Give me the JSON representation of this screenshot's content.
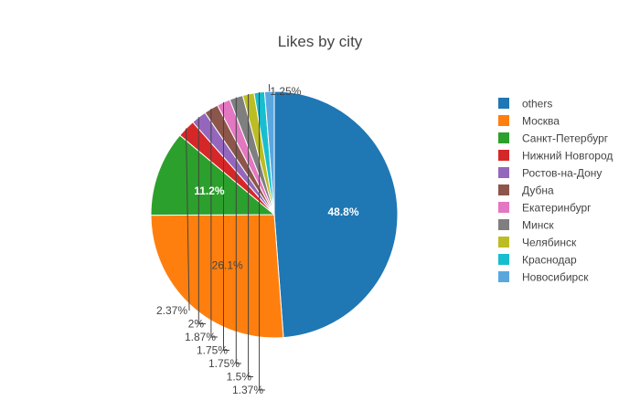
{
  "chart_data": {
    "type": "pie",
    "title": "Likes by city",
    "slices": [
      {
        "label": "others",
        "value": 48.8,
        "text": "48.8%",
        "color": "#1f77b4"
      },
      {
        "label": "Москва",
        "value": 26.1,
        "text": "26.1%",
        "color": "#ff7f0e"
      },
      {
        "label": "Санкт-Петербург",
        "value": 11.2,
        "text": "11.2%",
        "color": "#2ca02c"
      },
      {
        "label": "Нижний Новгород",
        "value": 2.37,
        "text": "2.37%",
        "color": "#d62728"
      },
      {
        "label": "Ростов-на-Дону",
        "value": 2,
        "text": "2%",
        "color": "#9467bd"
      },
      {
        "label": "Дубна",
        "value": 1.87,
        "text": "1.87%",
        "color": "#8c564b"
      },
      {
        "label": "Екатеринбург",
        "value": 1.75,
        "text": "1.75%",
        "color": "#e377c2"
      },
      {
        "label": "Минск",
        "value": 1.75,
        "text": "1.75%",
        "color": "#7f7f7f"
      },
      {
        "label": "Челябинск",
        "value": 1.5,
        "text": "1.5%",
        "color": "#bcbd22"
      },
      {
        "label": "Краснодар",
        "value": 1.37,
        "text": "1.37%",
        "color": "#17becf"
      },
      {
        "label": "Новосибирск",
        "value": 1.25,
        "text": "1.25%",
        "color": "#5aa7e0"
      }
    ],
    "direction": "clockwise",
    "start_angle": "top",
    "legend_position": "right"
  }
}
